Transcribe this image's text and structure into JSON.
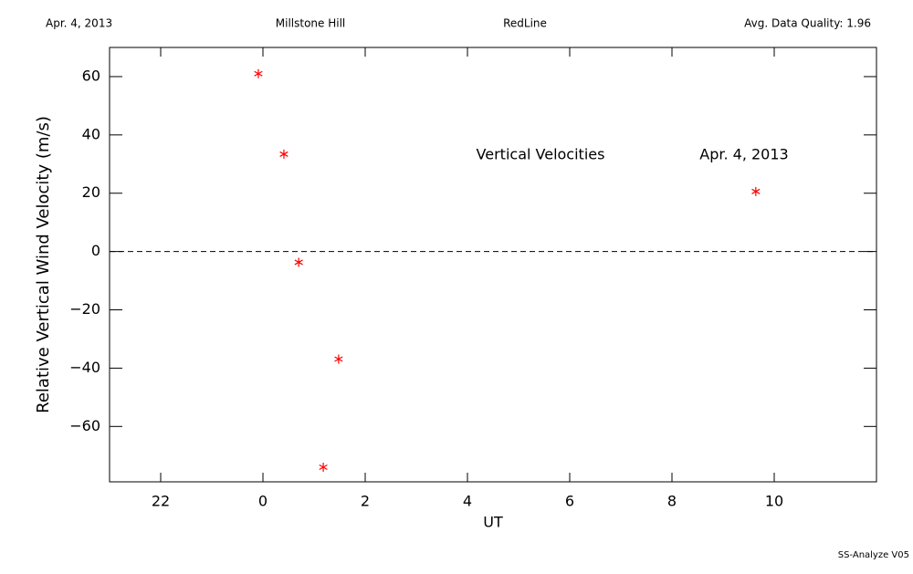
{
  "header": {
    "date": "Apr. 4, 2013",
    "site": "Millstone Hill",
    "line": "RedLine",
    "quality": "Avg. Data Quality: 1.96"
  },
  "footer": "SS-Analyze V05",
  "chart_data": {
    "type": "scatter",
    "xlabel": "UT",
    "ylabel": "Relative Vertical Wind Velocity (m/s)",
    "annotations": [
      "Vertical Velocities",
      "Apr. 4, 2013"
    ],
    "xlim": [
      -3,
      12
    ],
    "ylim": [
      -79,
      70
    ],
    "xticks": [
      {
        "value": -2,
        "label": "22"
      },
      0,
      2,
      4,
      6,
      8,
      10
    ],
    "yticks": [
      {
        "value": -60,
        "label": "−60"
      },
      {
        "value": -40,
        "label": "−40"
      },
      {
        "value": -20,
        "label": "−20"
      },
      0,
      20,
      40,
      60
    ],
    "reference_line": 0,
    "series": [
      {
        "name": "Vertical Velocities",
        "color": "#ff0000",
        "x": [
          -0.09,
          0.41,
          0.7,
          1.18,
          1.48,
          9.64
        ],
        "values": [
          61,
          33.4,
          -3.7,
          -74,
          -36.9,
          20.6
        ]
      }
    ]
  }
}
